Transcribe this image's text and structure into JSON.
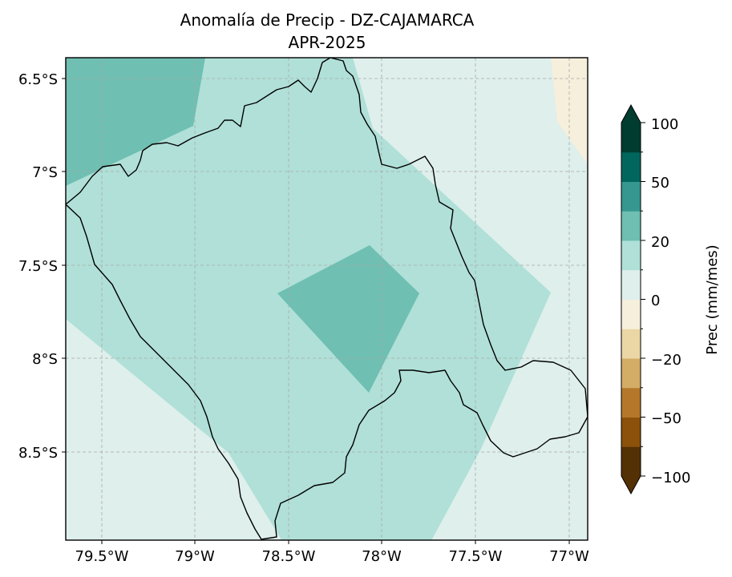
{
  "map": {
    "title_line1": "Anomalía de Precip - DZ-CAJAMARCA",
    "title_line2": "APR-2025",
    "lat_ticks": [
      "6.5°S",
      "7°S",
      "7.5°S",
      "8°S",
      "8.5°S"
    ],
    "lon_ticks": [
      "79.5°W",
      "79°W",
      "78.5°W",
      "78°W",
      "77.5°W",
      "77°W"
    ],
    "gridlines": true,
    "region": "DZ-CAJAMARCA"
  },
  "colorbar": {
    "label": "Prec (mm/mes)",
    "tick_labels": [
      "100",
      "50",
      "20",
      "0",
      "−20",
      "−50",
      "−100"
    ],
    "levels": [
      -100,
      -75,
      -50,
      -35,
      -20,
      -10,
      0,
      10,
      20,
      35,
      50,
      75,
      100
    ],
    "colors_low_to_high": [
      "#543005",
      "#8c510a",
      "#b5782a",
      "#d3ac66",
      "#ebd6a6",
      "#f6efdc",
      "#deefec",
      "#b0e0d8",
      "#6fbfb2",
      "#35978f",
      "#01665e",
      "#003c30"
    ],
    "extend": "both"
  },
  "chart_data": {
    "type": "heatmap",
    "title": "Anomalía de Precip - DZ-CAJAMARCA",
    "subtitle": "APR-2025",
    "xlabel": "",
    "ylabel": "",
    "xlim": [
      -79.7,
      -76.9
    ],
    "ylim": [
      -8.95,
      -6.37
    ],
    "colorbar_label": "Prec (mm/mes)",
    "value_ranges_shown": [
      {
        "area": "background",
        "range": "0 to 10"
      },
      {
        "area": "central band",
        "range": "10 to 20"
      },
      {
        "area": "northwest corner",
        "range": "20 to 35"
      },
      {
        "area": "center diamond",
        "range": "20 to 35"
      },
      {
        "area": "northeast corner",
        "range": "-10 to 0"
      }
    ]
  }
}
